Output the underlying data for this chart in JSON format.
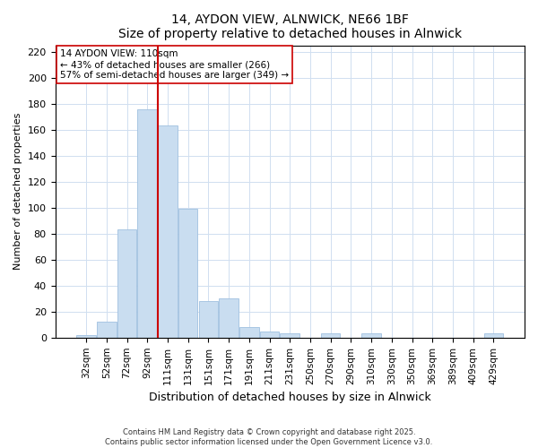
{
  "title": "14, AYDON VIEW, ALNWICK, NE66 1BF",
  "subtitle": "Size of property relative to detached houses in Alnwick",
  "xlabel": "Distribution of detached houses by size in Alnwick",
  "ylabel": "Number of detached properties",
  "bar_labels": [
    "32sqm",
    "52sqm",
    "72sqm",
    "92sqm",
    "111sqm",
    "131sqm",
    "151sqm",
    "171sqm",
    "191sqm",
    "211sqm",
    "231sqm",
    "250sqm",
    "270sqm",
    "290sqm",
    "310sqm",
    "330sqm",
    "350sqm",
    "369sqm",
    "389sqm",
    "409sqm",
    "429sqm"
  ],
  "bar_heights": [
    2,
    12,
    83,
    176,
    163,
    99,
    28,
    30,
    8,
    5,
    3,
    0,
    3,
    0,
    3,
    0,
    0,
    0,
    0,
    0,
    3
  ],
  "bar_color": "#c9ddf0",
  "bar_edge_color": "#a0c0e0",
  "vline_color": "#cc0000",
  "ylim": [
    0,
    225
  ],
  "yticks": [
    0,
    20,
    40,
    60,
    80,
    100,
    120,
    140,
    160,
    180,
    200,
    220
  ],
  "annotation_title": "14 AYDON VIEW: 110sqm",
  "annotation_line1": "← 43% of detached houses are smaller (266)",
  "annotation_line2": "57% of semi-detached houses are larger (349) →",
  "footer_line1": "Contains HM Land Registry data © Crown copyright and database right 2025.",
  "footer_line2": "Contains public sector information licensed under the Open Government Licence v3.0.",
  "background_color": "#ffffff",
  "grid_color": "#d0dff0"
}
